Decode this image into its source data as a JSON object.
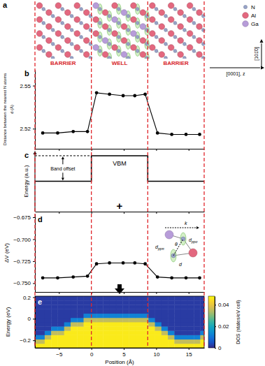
{
  "diagram": {
    "panel": "a",
    "atoms": [
      {
        "label": "N",
        "color": "#97a3c8"
      },
      {
        "label": "Al",
        "color": "#e3687f"
      },
      {
        "label": "Ga",
        "color": "#b79cd9"
      }
    ],
    "regions": [
      "BARRIER",
      "WELL",
      "BARRIER"
    ],
    "boundaries": [
      -8.7,
      0,
      8.7,
      17.4
    ],
    "directions": [
      "[101̄0]",
      "[0001], z"
    ]
  },
  "chart_data": [
    {
      "panel": "b",
      "type": "line",
      "ylabel": [
        "Distance between the nearest N atoms",
        "d (Å)"
      ],
      "x": [
        -7.5,
        -5.2,
        -2.8,
        -0.6,
        0.8,
        2.8,
        4.9,
        6.7,
        8.3,
        10.2,
        12.4,
        14.6,
        16.7
      ],
      "series": [
        {
          "values": [
            2.517,
            2.517,
            2.518,
            2.518,
            2.545,
            2.544,
            2.543,
            2.543,
            2.544,
            2.517,
            2.516,
            2.516,
            2.516
          ],
          "color": "#000000",
          "marker": "circle"
        }
      ],
      "xlim": [
        -8.7,
        17.4
      ],
      "xticks": [
        -5,
        0,
        5,
        10,
        15
      ],
      "ylim": [
        2.506,
        2.561
      ],
      "yticks": [
        2.52,
        2.55
      ],
      "tick_labels": "y"
    },
    {
      "panel": "c",
      "type": "line",
      "ylabel": "Energy (a.u.)",
      "x": [
        -8.7,
        0,
        0,
        8.7,
        8.7,
        17.4
      ],
      "series": [
        {
          "values": [
            0.5,
            0.5,
            0.92,
            0.92,
            0.5,
            0.5
          ],
          "color": "#000000"
        }
      ],
      "xlim": [
        -8.7,
        17.4
      ],
      "xticks": [
        -5,
        0,
        5,
        10,
        15
      ],
      "ylim": [
        0,
        1
      ],
      "tick_labels": false,
      "reference_line": {
        "x": [
          -8.7,
          0
        ],
        "value": 0.92,
        "line_style": "dashed"
      },
      "annotations": [
        {
          "text": "VBM",
          "x": 4.35,
          "y": 0.8
        },
        {
          "text": "Band offset",
          "x": -4.4,
          "y": 0.71
        },
        {
          "text": "+",
          "x": 4.35,
          "y": 0.1
        }
      ]
    },
    {
      "panel": "d",
      "type": "line",
      "ylabel": "ΔV (eV)",
      "x": [
        -7.5,
        -5.2,
        -2.8,
        -0.6,
        0.8,
        2.8,
        4.9,
        6.7,
        8.3,
        10.2,
        12.4,
        14.6,
        16.7
      ],
      "series": [
        {
          "values": [
            -0.744,
            -0.744,
            -0.743,
            -0.742,
            -0.728,
            -0.727,
            -0.727,
            -0.727,
            -0.728,
            -0.743,
            -0.744,
            -0.744,
            -0.744
          ],
          "color": "#000000",
          "marker": "circle"
        }
      ],
      "xlim": [
        -8.7,
        17.4
      ],
      "xticks": [
        -5,
        0,
        5,
        10,
        15
      ],
      "ylim": [
        -0.76,
        -0.671
      ],
      "yticks": [
        {
          "value": -0.75,
          "label": "−0.750"
        },
        {
          "value": -0.725,
          "label": "−0.725"
        },
        {
          "value": -0.7,
          "label": "−0.700"
        },
        {
          "value": -0.675,
          "label": "−0.675"
        }
      ],
      "tick_labels": "y",
      "inset": {
        "labels": [
          "k",
          "θ",
          "dppπ",
          "dppσ",
          "d"
        ]
      }
    },
    {
      "panel": "e",
      "type": "heatmap",
      "xlabel": "Position (Å)",
      "ylabel": "Energy (eV)",
      "x": [
        -8.7,
        -7.7,
        -6.7,
        -5.7,
        -4.7,
        -3.7,
        -2.7,
        -1.7,
        -0.7,
        0.3,
        1.3,
        2.3,
        3.3,
        4.3,
        5.3,
        6.3,
        7.3,
        8.3,
        9.3,
        10.3,
        11.3,
        12.3,
        13.3,
        14.3,
        15.3,
        16.3,
        17.3
      ],
      "y": [
        -0.25,
        -0.21,
        -0.17,
        -0.13,
        -0.09,
        -0.05,
        -0.01,
        0.03,
        0.07,
        0.11,
        0.15,
        0.19
      ],
      "z": [
        [
          0.046,
          0.046,
          0.046,
          0.046,
          0.046,
          0.046,
          0.046,
          0.046,
          0.046,
          0.046,
          0.046,
          0.046,
          0.046,
          0.046,
          0.046,
          0.046,
          0.046,
          0.046,
          0.046,
          0.046,
          0.046,
          0.046,
          0.046,
          0.046,
          0.046,
          0.046,
          0.046
        ],
        [
          0.035,
          0.035,
          0.046,
          0.046,
          0.046,
          0.046,
          0.046,
          0.046,
          0.046,
          0.046,
          0.046,
          0.046,
          0.046,
          0.046,
          0.046,
          0.046,
          0.046,
          0.046,
          0.046,
          0.046,
          0.046,
          0.046,
          0.035,
          0.035,
          0.035,
          0.035,
          0.046
        ],
        [
          0.012,
          0.012,
          0.035,
          0.046,
          0.046,
          0.046,
          0.046,
          0.046,
          0.046,
          0.046,
          0.046,
          0.046,
          0.046,
          0.046,
          0.046,
          0.046,
          0.046,
          0.046,
          0.046,
          0.046,
          0.046,
          0.035,
          0.012,
          0.012,
          0.012,
          0.012,
          0.035
        ],
        [
          0.002,
          0.002,
          0.012,
          0.035,
          0.035,
          0.046,
          0.046,
          0.046,
          0.046,
          0.046,
          0.046,
          0.046,
          0.046,
          0.046,
          0.046,
          0.046,
          0.046,
          0.046,
          0.046,
          0.046,
          0.035,
          0.012,
          0.002,
          0.002,
          0.002,
          0.002,
          0.012
        ],
        [
          0.002,
          0.002,
          0.002,
          0.012,
          0.012,
          0.035,
          0.046,
          0.046,
          0.046,
          0.046,
          0.046,
          0.046,
          0.046,
          0.046,
          0.046,
          0.046,
          0.046,
          0.046,
          0.046,
          0.035,
          0.012,
          0.002,
          0.002,
          0.002,
          0.002,
          0.002,
          0.002
        ],
        [
          0.002,
          0.002,
          0.002,
          0.002,
          0.002,
          0.012,
          0.035,
          0.035,
          0.046,
          0.046,
          0.046,
          0.046,
          0.046,
          0.046,
          0.046,
          0.046,
          0.046,
          0.046,
          0.035,
          0.012,
          0.002,
          0.002,
          0.002,
          0.002,
          0.002,
          0.002,
          0.002
        ],
        [
          0.002,
          0.002,
          0.002,
          0.002,
          0.002,
          0.002,
          0.012,
          0.012,
          0.035,
          0.035,
          0.035,
          0.035,
          0.035,
          0.035,
          0.035,
          0.035,
          0.035,
          0.035,
          0.012,
          0.002,
          0.002,
          0.002,
          0.002,
          0.002,
          0.002,
          0.002,
          0.002
        ],
        [
          0.002,
          0.002,
          0.002,
          0.002,
          0.002,
          0.002,
          0.002,
          0.002,
          0.012,
          0.012,
          0.012,
          0.012,
          0.012,
          0.012,
          0.012,
          0.012,
          0.012,
          0.012,
          0.002,
          0.002,
          0.002,
          0.002,
          0.002,
          0.002,
          0.002,
          0.002,
          0.002
        ],
        [
          0.002,
          0.002,
          0.002,
          0.002,
          0.002,
          0.002,
          0.002,
          0.002,
          0.002,
          0.002,
          0.002,
          0.002,
          0.002,
          0.002,
          0.002,
          0.002,
          0.002,
          0.002,
          0.002,
          0.002,
          0.002,
          0.002,
          0.002,
          0.002,
          0.002,
          0.002,
          0.002
        ],
        [
          0.002,
          0.002,
          0.002,
          0.002,
          0.002,
          0.002,
          0.002,
          0.002,
          0.002,
          0.002,
          0.002,
          0.002,
          0.002,
          0.002,
          0.002,
          0.002,
          0.002,
          0.002,
          0.002,
          0.002,
          0.002,
          0.002,
          0.002,
          0.002,
          0.002,
          0.002,
          0.002
        ],
        [
          0.002,
          0.002,
          0.002,
          0.002,
          0.002,
          0.002,
          0.002,
          0.002,
          0.002,
          0.002,
          0.002,
          0.002,
          0.002,
          0.002,
          0.002,
          0.002,
          0.002,
          0.002,
          0.002,
          0.002,
          0.002,
          0.002,
          0.002,
          0.002,
          0.002,
          0.002,
          0.002
        ],
        [
          0.002,
          0.002,
          0.002,
          0.002,
          0.002,
          0.002,
          0.002,
          0.002,
          0.002,
          0.002,
          0.002,
          0.002,
          0.002,
          0.002,
          0.002,
          0.002,
          0.002,
          0.002,
          0.002,
          0.002,
          0.002,
          0.002,
          0.002,
          0.002,
          0.002,
          0.002,
          0.002
        ]
      ],
      "xlim": [
        -8.7,
        17.4
      ],
      "xticks": [
        {
          "value": -5,
          "label": "−5"
        },
        0,
        5,
        10,
        15
      ],
      "ylim": [
        -0.27,
        0.21
      ],
      "yticks": [
        {
          "value": -0.2,
          "label": "−0.2"
        },
        0,
        0.2
      ],
      "colorbar": {
        "label": "DOS (states/eV cell)",
        "range": [
          0,
          0.048
        ],
        "ticks": [
          0,
          0.02,
          0.04
        ]
      }
    }
  ]
}
